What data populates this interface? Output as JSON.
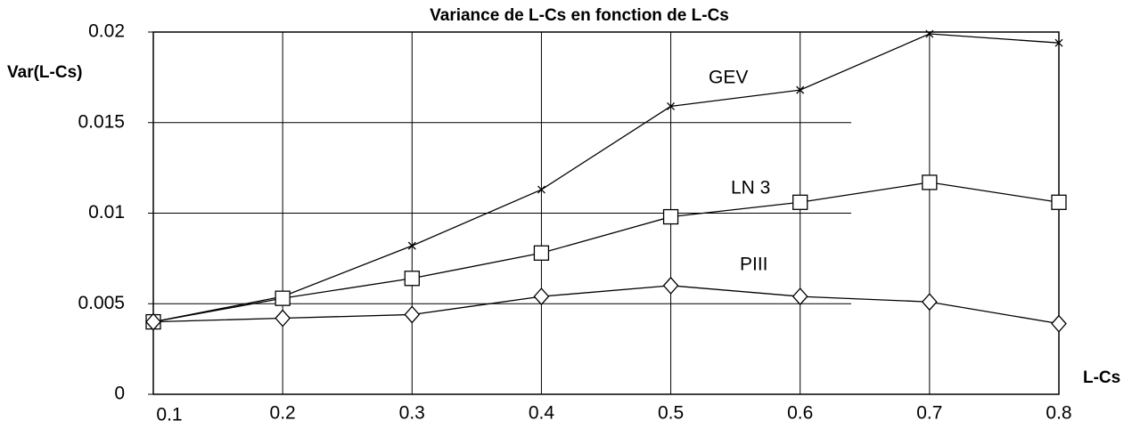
{
  "chart_data": {
    "type": "line",
    "title": "Variance de L-Cs en fonction de L-Cs",
    "x_label": "L-Cs",
    "y_label": "Var(L-Cs)",
    "x": [
      0.1,
      0.2,
      0.3,
      0.4,
      0.5,
      0.6,
      0.7,
      0.8
    ],
    "series": [
      {
        "name": "GEV",
        "color": "#000000",
        "marker": "x",
        "values": [
          0.004,
          0.0054,
          0.0082,
          0.0113,
          0.0159,
          0.0168,
          0.0199,
          0.0194
        ]
      },
      {
        "name": "LN 3",
        "color": "#000000",
        "marker": "square",
        "values": [
          0.004,
          0.0053,
          0.0064,
          0.0078,
          0.0098,
          0.0106,
          0.0117,
          0.0106
        ]
      },
      {
        "name": "PIII",
        "color": "#000000",
        "marker": "diamond",
        "values": [
          0.004,
          0.0042,
          0.0044,
          0.0054,
          0.006,
          0.0054,
          0.0051,
          0.0039
        ]
      }
    ],
    "xlim": [
      0.1,
      0.8
    ],
    "xticks": [
      0.1,
      0.2,
      0.3,
      0.4,
      0.5,
      0.6,
      0.7,
      0.8
    ],
    "ylim": [
      0,
      0.02
    ],
    "yticks": [
      0,
      0.005,
      0.01,
      0.015,
      0.02
    ],
    "grid": true
  }
}
